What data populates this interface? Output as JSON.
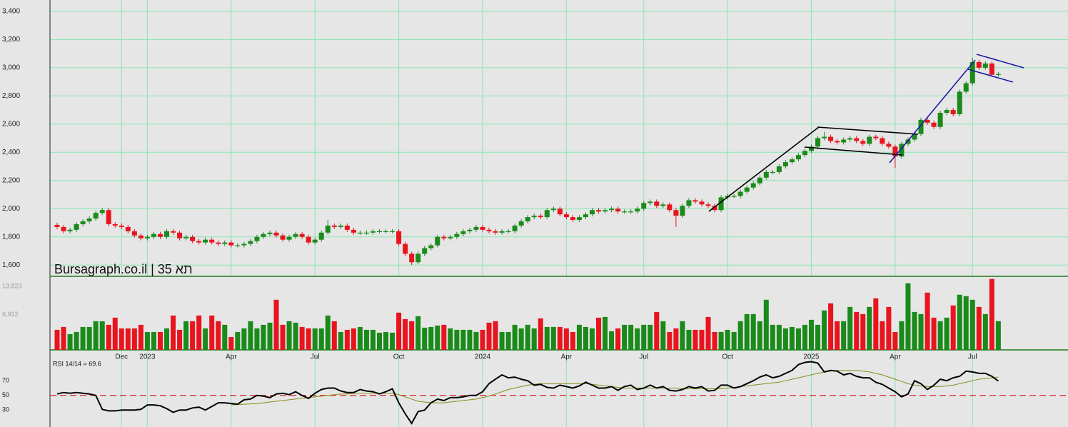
{
  "chart_data": [
    {
      "type": "candlestick",
      "title": "Bursagraph.co.il | תא 35",
      "categories": [
        null,
        null,
        null,
        null,
        null,
        null,
        null,
        null,
        null,
        null,
        "Dec",
        null,
        null,
        null,
        "2023",
        null,
        null,
        null,
        null,
        null,
        null,
        null,
        null,
        null,
        null,
        null,
        null,
        "Apr",
        null,
        null,
        null,
        null,
        null,
        null,
        null,
        null,
        null,
        null,
        null,
        null,
        "Jul",
        null,
        null,
        null,
        null,
        null,
        null,
        null,
        null,
        null,
        null,
        null,
        null,
        "Oct",
        null,
        null,
        null,
        null,
        null,
        null,
        null,
        null,
        null,
        null,
        null,
        null,
        "2024",
        null,
        null,
        null,
        null,
        null,
        null,
        null,
        null,
        null,
        null,
        null,
        null,
        "Apr",
        null,
        null,
        null,
        null,
        null,
        null,
        null,
        null,
        null,
        null,
        null,
        "Jul",
        null,
        null,
        null,
        null,
        null,
        null,
        null,
        null,
        null,
        null,
        null,
        null,
        "Oct",
        null,
        null,
        null,
        null,
        null,
        null,
        null,
        null,
        null,
        null,
        null,
        null,
        "2025",
        null,
        null,
        null,
        null,
        null,
        null,
        null,
        null,
        null,
        null,
        null,
        null,
        "Apr",
        null,
        null,
        null,
        null,
        null,
        null,
        null,
        null,
        null,
        null,
        null,
        "Jul",
        null,
        null,
        null,
        null
      ],
      "open": [
        1885,
        1870,
        1840,
        1850,
        1890,
        1910,
        1930,
        1970,
        1990,
        1890,
        1880,
        1870,
        1840,
        1810,
        1790,
        1800,
        1820,
        1800,
        1840,
        1830,
        1790,
        1800,
        1770,
        1760,
        1780,
        1760,
        1750,
        1760,
        1740,
        1740,
        1750,
        1770,
        1800,
        1820,
        1830,
        1810,
        1780,
        1800,
        1820,
        1800,
        1760,
        1780,
        1830,
        1880,
        1870,
        1880,
        1850,
        1830,
        1830,
        1830,
        1840,
        1840,
        1840,
        1840,
        1750,
        1680,
        1620,
        1680,
        1720,
        1740,
        1800,
        1790,
        1800,
        1820,
        1840,
        1850,
        1870,
        1850,
        1840,
        1830,
        1840,
        1840,
        1880,
        1910,
        1940,
        1950,
        1940,
        1990,
        2000,
        1960,
        1940,
        1920,
        1940,
        1960,
        1990,
        1980,
        1990,
        2000,
        1980,
        1980,
        1980,
        2000,
        2040,
        2050,
        2020,
        2030,
        1990,
        1950,
        2020,
        2060,
        2050,
        2030,
        2020,
        1990,
        2080,
        2090,
        2090,
        2120,
        2150,
        2180,
        2220,
        2260,
        2260,
        2300,
        2330,
        2350,
        2380,
        2410,
        2440,
        2500,
        2510,
        2480,
        2470,
        2490,
        2500,
        2480,
        2460,
        2510,
        2500,
        2460,
        2440,
        2370,
        2460,
        2490,
        2530,
        2630,
        2610,
        2580,
        2680,
        2700,
        2670,
        2830,
        2890,
        3040,
        3000,
        3030,
        2950
      ],
      "high": [
        1900,
        1885,
        1865,
        1905,
        1925,
        1945,
        1985,
        2005,
        2005,
        1905,
        1895,
        1885,
        1855,
        1825,
        1815,
        1835,
        1835,
        1855,
        1855,
        1845,
        1815,
        1815,
        1785,
        1795,
        1795,
        1775,
        1775,
        1775,
        1755,
        1765,
        1785,
        1815,
        1835,
        1845,
        1845,
        1825,
        1815,
        1835,
        1835,
        1815,
        1795,
        1845,
        1920,
        1895,
        1895,
        1895,
        1865,
        1845,
        1845,
        1855,
        1855,
        1855,
        1855,
        1855,
        1765,
        1695,
        1695,
        1735,
        1755,
        1815,
        1815,
        1815,
        1835,
        1855,
        1865,
        1885,
        1885,
        1865,
        1855,
        1855,
        1855,
        1895,
        1925,
        1955,
        1965,
        1965,
        2005,
        2015,
        2015,
        1975,
        1955,
        1955,
        1975,
        2005,
        2005,
        2005,
        2015,
        2015,
        1995,
        1995,
        2015,
        2055,
        2065,
        2065,
        2045,
        2045,
        2005,
        2035,
        2075,
        2075,
        2065,
        2045,
        2035,
        2095,
        2105,
        2105,
        2135,
        2165,
        2195,
        2235,
        2275,
        2275,
        2315,
        2345,
        2365,
        2395,
        2425,
        2455,
        2515,
        2545,
        2525,
        2495,
        2505,
        2515,
        2515,
        2495,
        2525,
        2525,
        2515,
        2475,
        2455,
        2475,
        2505,
        2545,
        2645,
        2645,
        2625,
        2695,
        2715,
        2715,
        2845,
        2905,
        3070,
        3055,
        3045,
        3045,
        2970
      ],
      "low": [
        1855,
        1825,
        1825,
        1835,
        1875,
        1895,
        1915,
        1955,
        1875,
        1865,
        1855,
        1825,
        1795,
        1775,
        1775,
        1785,
        1785,
        1785,
        1815,
        1775,
        1775,
        1755,
        1745,
        1745,
        1745,
        1735,
        1735,
        1725,
        1725,
        1725,
        1735,
        1755,
        1785,
        1805,
        1795,
        1765,
        1765,
        1785,
        1785,
        1745,
        1745,
        1765,
        1815,
        1855,
        1855,
        1835,
        1815,
        1815,
        1815,
        1815,
        1825,
        1825,
        1825,
        1735,
        1665,
        1600,
        1605,
        1665,
        1705,
        1725,
        1775,
        1775,
        1785,
        1805,
        1825,
        1835,
        1835,
        1825,
        1815,
        1815,
        1825,
        1825,
        1865,
        1895,
        1925,
        1925,
        1925,
        1975,
        1945,
        1925,
        1905,
        1905,
        1925,
        1945,
        1965,
        1965,
        1975,
        1965,
        1965,
        1965,
        1965,
        1985,
        2025,
        2005,
        2005,
        1975,
        1870,
        1935,
        2005,
        2035,
        2015,
        2005,
        1975,
        1975,
        2065,
        2075,
        2075,
        2105,
        2135,
        2165,
        2205,
        2245,
        2245,
        2285,
        2315,
        2335,
        2365,
        2395,
        2425,
        2485,
        2465,
        2455,
        2455,
        2475,
        2465,
        2445,
        2445,
        2485,
        2445,
        2425,
        2290,
        2355,
        2445,
        2475,
        2515,
        2595,
        2565,
        2565,
        2665,
        2655,
        2655,
        2815,
        2875,
        2985,
        2985,
        2935,
        2935
      ],
      "close": [
        1870,
        1840,
        1850,
        1890,
        1910,
        1930,
        1970,
        1990,
        1890,
        1880,
        1870,
        1840,
        1810,
        1790,
        1800,
        1820,
        1800,
        1840,
        1830,
        1790,
        1800,
        1770,
        1760,
        1780,
        1760,
        1750,
        1760,
        1740,
        1740,
        1750,
        1770,
        1800,
        1820,
        1830,
        1810,
        1780,
        1800,
        1820,
        1800,
        1760,
        1780,
        1830,
        1880,
        1870,
        1880,
        1850,
        1830,
        1830,
        1830,
        1840,
        1840,
        1840,
        1840,
        1750,
        1680,
        1620,
        1680,
        1720,
        1740,
        1800,
        1790,
        1800,
        1820,
        1840,
        1850,
        1870,
        1850,
        1840,
        1830,
        1840,
        1840,
        1880,
        1910,
        1940,
        1950,
        1940,
        1990,
        2000,
        1960,
        1940,
        1920,
        1940,
        1960,
        1990,
        1980,
        1990,
        2000,
        1980,
        1980,
        1980,
        2000,
        2040,
        2050,
        2020,
        2030,
        1990,
        1950,
        2020,
        2060,
        2050,
        2030,
        2020,
        1990,
        2080,
        2090,
        2090,
        2120,
        2150,
        2180,
        2220,
        2260,
        2260,
        2300,
        2330,
        2350,
        2380,
        2410,
        2440,
        2500,
        2510,
        2480,
        2470,
        2490,
        2500,
        2480,
        2460,
        2510,
        2500,
        2460,
        2440,
        2370,
        2460,
        2490,
        2530,
        2630,
        2610,
        2580,
        2680,
        2700,
        2670,
        2830,
        2890,
        3040,
        3000,
        3030,
        2950,
        2955
      ],
      "up_color": "#1a8a1a",
      "down_color": "#e8141e",
      "ylim": [
        1520,
        3460
      ],
      "yticks": [
        {
          "value": 1600,
          "label": "1,600"
        },
        {
          "value": 1800,
          "label": "1,800"
        },
        {
          "value": 2000,
          "label": "2,000"
        },
        {
          "value": 2200,
          "label": "2,200"
        },
        {
          "value": 2400,
          "label": "2,400"
        },
        {
          "value": 2600,
          "label": "2,600"
        },
        {
          "value": 2800,
          "label": "2,800"
        },
        {
          "value": 3000,
          "label": "3,000"
        },
        {
          "value": 3200,
          "label": "3,200"
        },
        {
          "value": 3400,
          "label": "3,400"
        }
      ],
      "grid": true,
      "grid_color": "#86e8b4"
    },
    {
      "type": "bar",
      "values": [
        3920,
        4480,
        3080,
        3500,
        4480,
        4480,
        5600,
        5600,
        4900,
        6300,
        4200,
        4200,
        4200,
        4900,
        3500,
        3500,
        3500,
        4200,
        6720,
        3920,
        5600,
        5600,
        6720,
        4200,
        6720,
        5600,
        4900,
        2520,
        3500,
        4200,
        5600,
        4200,
        4900,
        5320,
        9800,
        4900,
        5600,
        5320,
        4480,
        4200,
        4200,
        4200,
        6720,
        5600,
        3500,
        3920,
        4200,
        4480,
        3920,
        3920,
        3360,
        3500,
        3360,
        7280,
        6020,
        5600,
        6580,
        4340,
        4480,
        4760,
        4900,
        4200,
        3920,
        3920,
        3920,
        3500,
        3920,
        5320,
        5600,
        3500,
        3500,
        4900,
        4200,
        4900,
        4200,
        6160,
        4480,
        4480,
        4480,
        4200,
        3500,
        4900,
        4480,
        4200,
        6300,
        6440,
        3640,
        4200,
        4900,
        4900,
        4200,
        4900,
        4900,
        7420,
        5600,
        3500,
        4200,
        5600,
        3920,
        3920,
        3920,
        6440,
        3500,
        3500,
        3920,
        3500,
        5600,
        7000,
        7000,
        5600,
        9800,
        4900,
        4900,
        4200,
        4480,
        4200,
        4900,
        5880,
        4900,
        7700,
        9100,
        5600,
        5600,
        8400,
        7420,
        7000,
        8400,
        10080,
        5600,
        8400,
        3500,
        5600,
        13020,
        7420,
        7000,
        11200,
        6300,
        5600,
        6300,
        8680,
        10780,
        10500,
        9800,
        8400,
        7000,
        13860,
        5600
      ],
      "ylim": [
        0,
        14380
      ],
      "yticks": [
        {
          "value": 6912,
          "label": "6,912"
        },
        {
          "value": 13823,
          "label": "13,823"
        }
      ]
    },
    {
      "type": "line",
      "title": "RSI 14/14 = 69.6",
      "series": [
        {
          "color": "#000000",
          "values": [
            52,
            54,
            53,
            54,
            53,
            52,
            50,
            31,
            29,
            29,
            30,
            30,
            30,
            31,
            37,
            37,
            36,
            32,
            27,
            30,
            30,
            33,
            34,
            30,
            35,
            40,
            40,
            39,
            38,
            44,
            45,
            50,
            49,
            47,
            52,
            53,
            51,
            55,
            50,
            46,
            53,
            58,
            60,
            60,
            56,
            54,
            54,
            58,
            56,
            55,
            52,
            55,
            59,
            40,
            25,
            12,
            28,
            30,
            40,
            45,
            43,
            47,
            47,
            48,
            50,
            50,
            55,
            66,
            72,
            78,
            74,
            75,
            72,
            70,
            64,
            65,
            61,
            60,
            64,
            62,
            60,
            63,
            68,
            64,
            60,
            60,
            62,
            57,
            62,
            64,
            58,
            60,
            64,
            60,
            62,
            57,
            56,
            58,
            62,
            60,
            62,
            56,
            57,
            64,
            64,
            60,
            62,
            66,
            70,
            75,
            78,
            74,
            76,
            80,
            84,
            92,
            95,
            96,
            94,
            82,
            84,
            83,
            78,
            80,
            76,
            74,
            74,
            68,
            65,
            60,
            55,
            48,
            52,
            70,
            66,
            58,
            64,
            72,
            70,
            74,
            76,
            83,
            82,
            80,
            80,
            76,
            69.6
          ]
        },
        {
          "color": "#8a8a1a",
          "values": [
            null,
            null,
            null,
            null,
            null,
            null,
            null,
            null,
            null,
            null,
            null,
            null,
            null,
            null,
            null,
            null,
            null,
            null,
            null,
            null,
            null,
            null,
            null,
            null,
            null,
            null,
            null,
            37,
            37.5,
            38,
            38.5,
            39,
            40,
            41,
            42,
            43,
            44,
            45,
            46,
            47,
            48,
            49,
            50,
            51,
            52,
            52,
            53,
            53,
            53,
            53,
            53,
            53,
            53,
            51,
            48,
            45,
            42,
            41,
            40,
            40,
            40,
            41,
            42,
            43,
            44,
            45,
            47,
            49,
            52,
            55,
            58,
            60,
            62,
            64,
            65,
            66,
            66,
            66,
            66,
            66,
            66,
            66,
            66,
            65,
            64,
            63,
            62,
            61,
            60,
            60,
            60,
            60,
            60,
            60,
            60,
            60,
            60,
            59,
            59,
            59,
            59,
            59,
            59,
            59,
            60,
            61,
            62,
            63,
            64,
            65,
            66,
            67,
            68,
            70,
            72,
            74,
            76,
            78,
            80,
            82,
            83,
            84,
            84,
            84,
            84,
            83,
            82,
            80,
            78,
            75,
            72,
            69,
            66,
            64,
            63,
            62,
            62,
            62,
            63,
            64,
            66,
            68,
            70,
            72,
            73,
            74,
            75
          ]
        }
      ],
      "ylim": [
        7,
        112
      ],
      "yticks": [
        30,
        50,
        70
      ],
      "reference_color": "#d42a2a"
    }
  ]
}
